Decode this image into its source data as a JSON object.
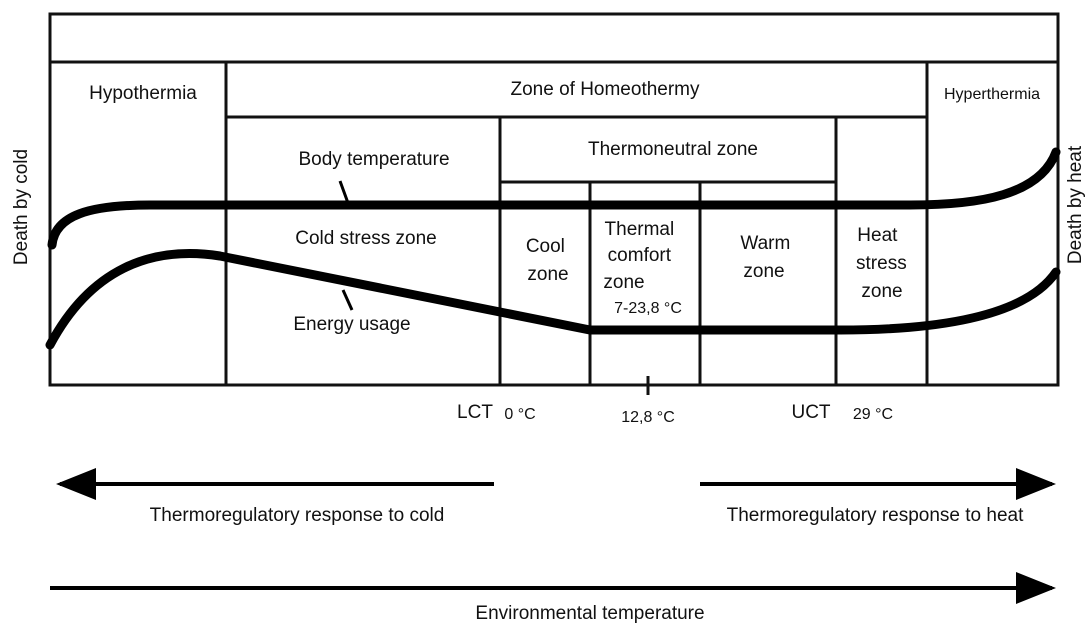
{
  "zones": {
    "hypothermia": "Hypothermia",
    "homeothermy": "Zone of Homeothermy",
    "hyperthermia": "Hyperthermia",
    "thermoneutral": "Thermoneutral zone",
    "cold_stress": "Cold stress zone",
    "cool": [
      "Cool",
      "zone"
    ],
    "thermal_comfort": [
      "Thermal",
      "comfort",
      "zone"
    ],
    "thermal_comfort_range": "7-23,8 °C",
    "warm": [
      "Warm",
      "zone"
    ],
    "heat_stress": [
      "Heat",
      "stress",
      "zone"
    ]
  },
  "sides": {
    "left": "Death by cold",
    "right": "Death by heat"
  },
  "curves": {
    "body_temperature": "Body temperature",
    "energy_usage": "Energy usage"
  },
  "axis_labels": {
    "lct": "LCT",
    "lct_value": "0 °C",
    "mid_value": "12,8 °C",
    "uct": "UCT",
    "uct_value": "29 °C"
  },
  "arrows": {
    "cold": "Thermoregulatory response to cold",
    "heat": "Thermoregulatory response to heat",
    "environment": "Environmental temperature"
  }
}
